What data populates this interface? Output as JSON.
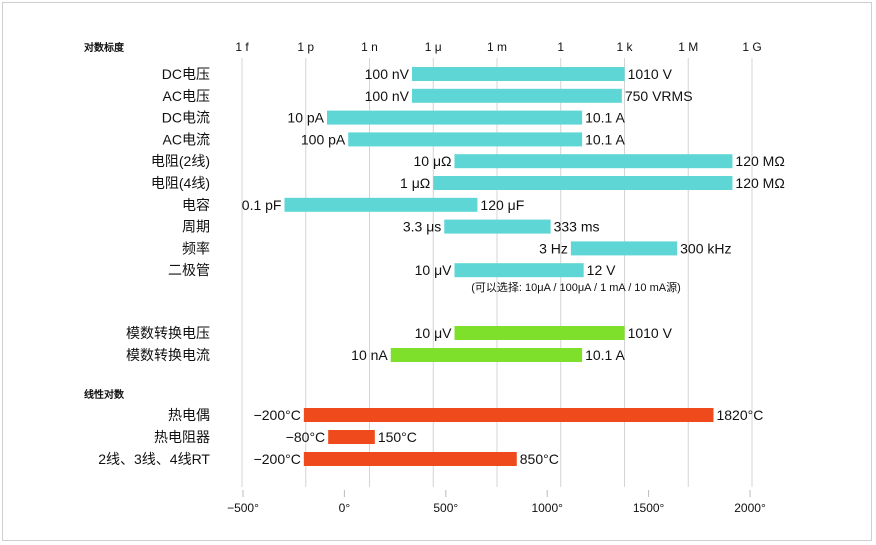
{
  "chart_data": [
    {
      "type": "range-bar",
      "section_label": "对数标度",
      "scale": "log10",
      "axis_ticks": [
        {
          "label": "1 f",
          "value": 1e-15
        },
        {
          "label": "1 p",
          "value": 1e-12
        },
        {
          "label": "1 n",
          "value": 1e-09
        },
        {
          "label": "1 μ",
          "value": 1e-06
        },
        {
          "label": "1 m",
          "value": 0.001
        },
        {
          "label": "1",
          "value": 1
        },
        {
          "label": "1 k",
          "value": 1000.0
        },
        {
          "label": "1 M",
          "value": 1000000.0
        },
        {
          "label": "1 G",
          "value": 1000000000.0
        }
      ],
      "grid": true,
      "color": "#5fd6d6",
      "rows": [
        {
          "name": "DC电压",
          "min": 1e-07,
          "max": 1010,
          "min_label": "100 nV",
          "max_label": "1010 V"
        },
        {
          "name": "AC电压",
          "min": 1e-07,
          "max": 750,
          "min_label": "100 nV",
          "max_label": "750 VRMS"
        },
        {
          "name": "DC电流",
          "min": 1e-11,
          "max": 10.1,
          "min_label": "10 pA",
          "max_label": "10.1 A"
        },
        {
          "name": "AC电流",
          "min": 1e-10,
          "max": 10.1,
          "min_label": "100 pA",
          "max_label": "10.1 A"
        },
        {
          "name": "电阻(2线)",
          "min": 1e-05,
          "max": 120000000.0,
          "min_label": "10 μΩ",
          "max_label": "120 MΩ"
        },
        {
          "name": "电阻(4线)",
          "min": 1e-06,
          "max": 120000000.0,
          "min_label": "1 μΩ",
          "max_label": "120 MΩ"
        },
        {
          "name": "电容",
          "min": 1e-13,
          "max": 0.00012,
          "min_label": "0.1 pF",
          "max_label": "120 μF"
        },
        {
          "name": "周期",
          "min": 3.3e-06,
          "max": 0.333,
          "min_label": "3.3 μs",
          "max_label": "333 ms"
        },
        {
          "name": "频率",
          "min": 3,
          "max": 300000.0,
          "min_label": "3 Hz",
          "max_label": "300 kHz"
        },
        {
          "name": "二极管",
          "min": 1e-05,
          "max": 12,
          "min_label": "10 μV",
          "max_label": "12 V"
        }
      ],
      "note": "(可以选择: 10μA / 100μA / 1 mA / 10 mA源)",
      "converter_color": "#7ee02a",
      "converter_rows": [
        {
          "name": "模数转换电压",
          "min": 1e-05,
          "max": 1010,
          "min_label": "10 μV",
          "max_label": "1010 V"
        },
        {
          "name": "模数转换电流",
          "min": 1e-08,
          "max": 10.1,
          "min_label": "10 nA",
          "max_label": "10.1 A"
        }
      ]
    },
    {
      "type": "range-bar",
      "section_label": "线性对数",
      "scale": "linear",
      "xlim": [
        -500,
        2000
      ],
      "axis_ticks": [
        {
          "label": "−500°",
          "value": -500
        },
        {
          "label": "0°",
          "value": 0
        },
        {
          "label": "500°",
          "value": 500
        },
        {
          "label": "1000°",
          "value": 1000
        },
        {
          "label": "1500°",
          "value": 1500
        },
        {
          "label": "2000°",
          "value": 2000
        }
      ],
      "grid": true,
      "color": "#ef4a1c",
      "rows": [
        {
          "name": "热电偶",
          "min": -200,
          "max": 1820,
          "min_label": "−200°C",
          "max_label": "1820°C"
        },
        {
          "name": "热电阻器",
          "min": -80,
          "max": 150,
          "min_label": "−80°C",
          "max_label": "150°C"
        },
        {
          "name": "2线、3线、4线RT",
          "min": -200,
          "max": 850,
          "min_label": "−200°C",
          "max_label": "850°C"
        }
      ]
    }
  ]
}
